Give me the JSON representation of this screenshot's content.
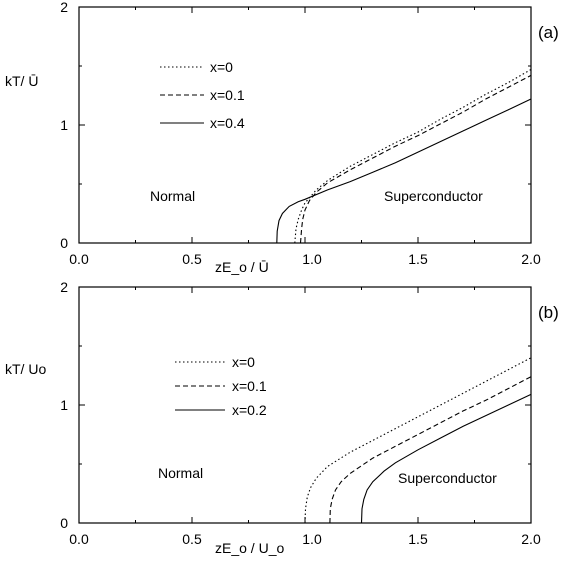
{
  "chart_data": [
    {
      "type": "line",
      "panel_label": "(a)",
      "xlabel": "zE_o / Ū",
      "ylabel": "kT/ Ū",
      "xlim": [
        0.0,
        2.0
      ],
      "ylim": [
        0,
        2
      ],
      "x_ticks": [
        "0.0",
        "0.5",
        "1.0",
        "1.5",
        "2.0"
      ],
      "y_ticks": [
        "0",
        "1",
        "2"
      ],
      "region_labels": [
        "Normal",
        "Superconductor"
      ],
      "legend_position": "upper-left",
      "series": [
        {
          "name": "x=0",
          "dash": "dotted",
          "points": [
            [
              0.955,
              0.0
            ],
            [
              0.96,
              0.12
            ],
            [
              0.97,
              0.2
            ],
            [
              0.985,
              0.28
            ],
            [
              1.0,
              0.34
            ],
            [
              1.05,
              0.45
            ],
            [
              1.1,
              0.53
            ],
            [
              1.2,
              0.65
            ],
            [
              1.3,
              0.75
            ],
            [
              1.4,
              0.85
            ],
            [
              1.5,
              0.94
            ],
            [
              1.6,
              1.05
            ],
            [
              1.7,
              1.15
            ],
            [
              1.8,
              1.26
            ],
            [
              1.9,
              1.36
            ],
            [
              2.0,
              1.47
            ]
          ]
        },
        {
          "name": "x=0.1",
          "dash": "dashed",
          "points": [
            [
              0.98,
              0.0
            ],
            [
              0.985,
              0.12
            ],
            [
              0.99,
              0.2
            ],
            [
              1.0,
              0.28
            ],
            [
              1.02,
              0.36
            ],
            [
              1.05,
              0.43
            ],
            [
              1.1,
              0.51
            ],
            [
              1.2,
              0.62
            ],
            [
              1.3,
              0.72
            ],
            [
              1.4,
              0.82
            ],
            [
              1.5,
              0.91
            ],
            [
              1.6,
              1.01
            ],
            [
              1.7,
              1.11
            ],
            [
              1.8,
              1.22
            ],
            [
              1.9,
              1.32
            ],
            [
              2.0,
              1.42
            ]
          ]
        },
        {
          "name": "x=0.4",
          "dash": "solid",
          "points": [
            [
              0.875,
              0.0
            ],
            [
              0.877,
              0.1
            ],
            [
              0.885,
              0.19
            ],
            [
              0.9,
              0.25
            ],
            [
              0.93,
              0.31
            ],
            [
              0.97,
              0.35
            ],
            [
              1.0,
              0.37
            ],
            [
              1.1,
              0.45
            ],
            [
              1.2,
              0.52
            ],
            [
              1.3,
              0.6
            ],
            [
              1.4,
              0.68
            ],
            [
              1.5,
              0.77
            ],
            [
              1.6,
              0.86
            ],
            [
              1.7,
              0.95
            ],
            [
              1.8,
              1.04
            ],
            [
              1.9,
              1.13
            ],
            [
              2.0,
              1.22
            ]
          ]
        }
      ]
    },
    {
      "type": "line",
      "panel_label": "(b)",
      "xlabel": "zE_o / U_o",
      "ylabel": "kT/ Uo",
      "xlim": [
        0.0,
        2.0
      ],
      "ylim": [
        0,
        2
      ],
      "x_ticks": [
        "0.0",
        "0.5",
        "1.0",
        "1.5",
        "2.0"
      ],
      "y_ticks": [
        "0",
        "1",
        "2"
      ],
      "region_labels": [
        "Normal",
        "Superconductor"
      ],
      "legend_position": "upper-left",
      "series": [
        {
          "name": "x=0",
          "dash": "dotted",
          "points": [
            [
              1.0,
              0.0
            ],
            [
              1.002,
              0.12
            ],
            [
              1.01,
              0.22
            ],
            [
              1.025,
              0.3
            ],
            [
              1.05,
              0.38
            ],
            [
              1.1,
              0.48
            ],
            [
              1.2,
              0.6
            ],
            [
              1.3,
              0.7
            ],
            [
              1.4,
              0.8
            ],
            [
              1.5,
              0.9
            ],
            [
              1.6,
              1.0
            ],
            [
              1.7,
              1.1
            ],
            [
              1.8,
              1.2
            ],
            [
              1.9,
              1.3
            ],
            [
              2.0,
              1.4
            ]
          ]
        },
        {
          "name": "x=0.1",
          "dash": "dashed",
          "points": [
            [
              1.11,
              0.0
            ],
            [
              1.112,
              0.12
            ],
            [
              1.12,
              0.2
            ],
            [
              1.135,
              0.28
            ],
            [
              1.16,
              0.35
            ],
            [
              1.2,
              0.42
            ],
            [
              1.3,
              0.55
            ],
            [
              1.4,
              0.65
            ],
            [
              1.5,
              0.75
            ],
            [
              1.6,
              0.85
            ],
            [
              1.7,
              0.95
            ],
            [
              1.8,
              1.04
            ],
            [
              1.9,
              1.14
            ],
            [
              2.0,
              1.24
            ]
          ]
        },
        {
          "name": "x=0.2",
          "dash": "solid",
          "points": [
            [
              1.25,
              0.0
            ],
            [
              1.252,
              0.12
            ],
            [
              1.26,
              0.2
            ],
            [
              1.275,
              0.28
            ],
            [
              1.3,
              0.35
            ],
            [
              1.35,
              0.44
            ],
            [
              1.4,
              0.51
            ],
            [
              1.5,
              0.62
            ],
            [
              1.6,
              0.72
            ],
            [
              1.7,
              0.82
            ],
            [
              1.8,
              0.91
            ],
            [
              1.9,
              1.0
            ],
            [
              2.0,
              1.09
            ]
          ]
        }
      ]
    }
  ]
}
